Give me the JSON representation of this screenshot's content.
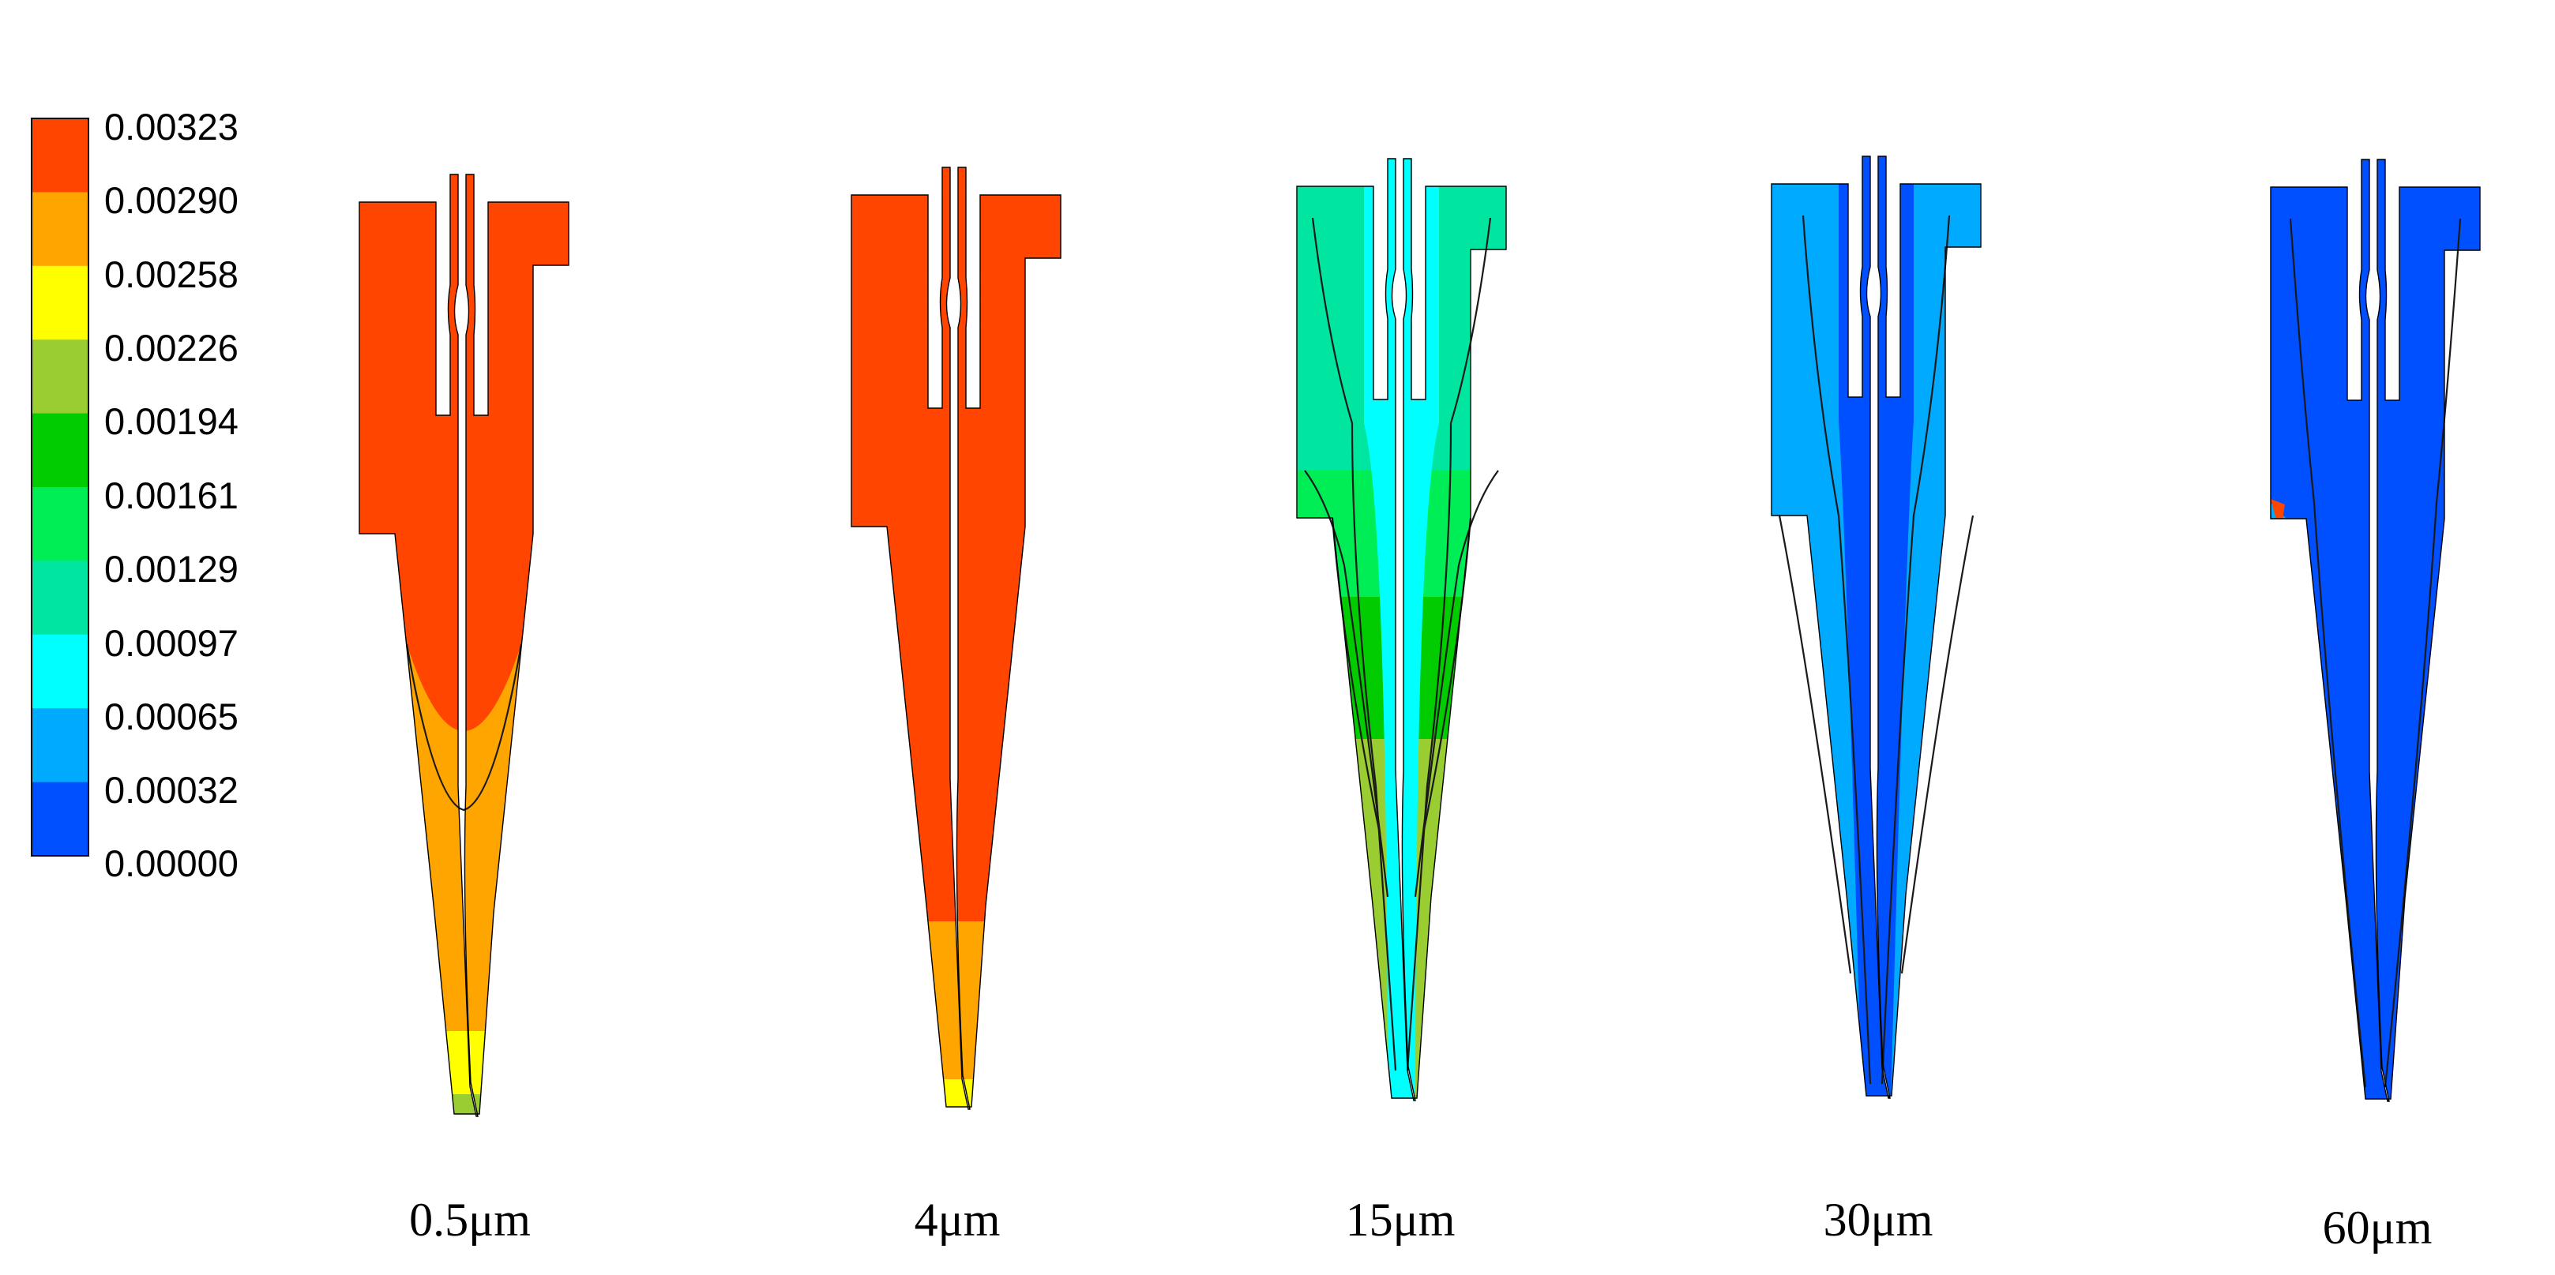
{
  "colorbar": {
    "labels": [
      "0.00323",
      "0.00290",
      "0.00258",
      "0.00226",
      "0.00194",
      "0.00161",
      "0.00129",
      "0.00097",
      "0.00065",
      "0.00032",
      "0.00000"
    ],
    "colors": [
      "#ff4500",
      "#ffa500",
      "#ffff00",
      "#9acd32",
      "#00cc00",
      "#00ee55",
      "#00e6a0",
      "#00ffff",
      "#00aaff",
      "#0050ff"
    ]
  },
  "panels": [
    {
      "caption": "0.5μm",
      "scheme": "red-tail"
    },
    {
      "caption": "4μm",
      "scheme": "red-short-tail"
    },
    {
      "caption": "15μm",
      "scheme": "green"
    },
    {
      "caption": "30μm",
      "scheme": "blue"
    },
    {
      "caption": "60μm",
      "scheme": "deep-blue"
    }
  ]
}
